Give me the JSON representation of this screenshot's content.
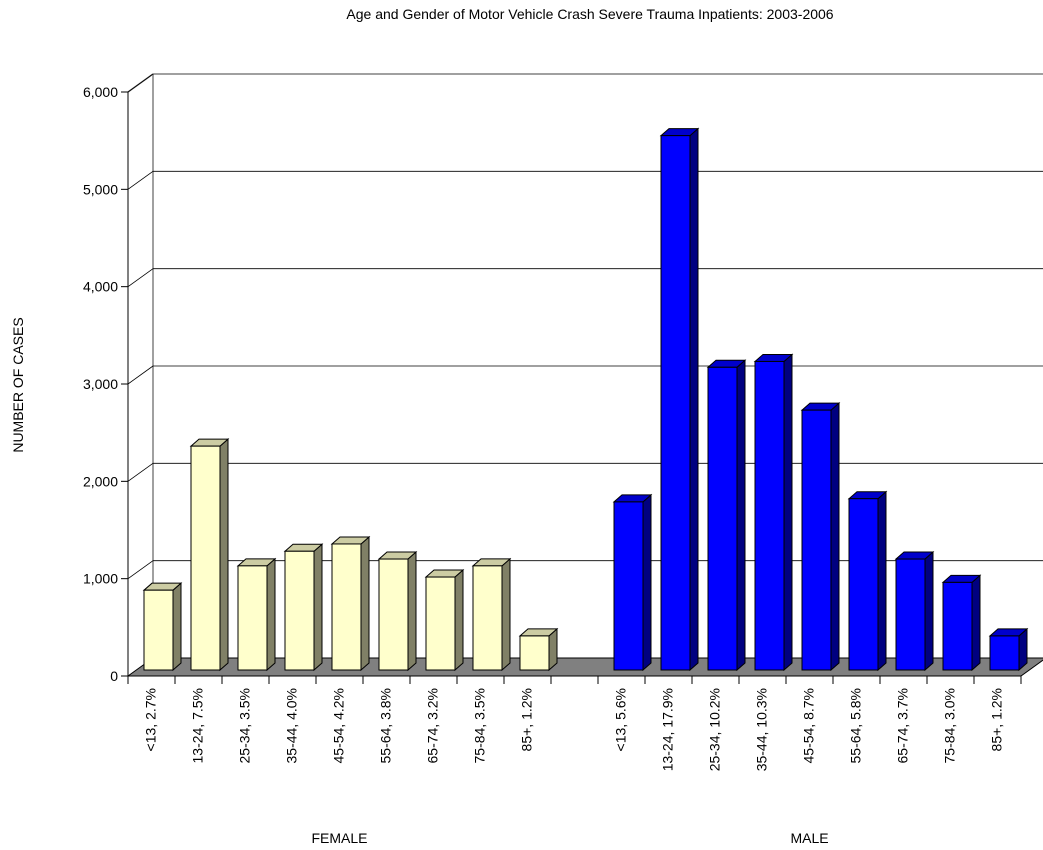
{
  "chart_data": {
    "type": "bar3d",
    "title": "Age and Gender of Motor Vehicle Crash Severe Trauma Inpatients: 2003-2006",
    "y_label": "NUMBER OF CASES",
    "groups": [
      {
        "name": "FEMALE",
        "color": "#ffffcc",
        "categories": [
          "<13, 2.7%",
          "13-24, 7.5%",
          "25-34, 3.5%",
          "35-44, 4.0%",
          "45-54, 4.2%",
          "55-64, 3.8%",
          "65-74, 3.2%",
          "75-84, 3.5%",
          "85+, 1.2%"
        ],
        "values": [
          820,
          2300,
          1070,
          1220,
          1295,
          1140,
          955,
          1070,
          350
        ]
      },
      {
        "name": "MALE",
        "color": "#0000ff",
        "categories": [
          "<13, 5.6%",
          "13-24, 17.9%",
          "25-34, 10.2%",
          "35-44, 10.3%",
          "45-54, 8.7%",
          "55-64, 5.8%",
          "65-74, 3.7%",
          "75-84, 3.0%",
          "85+, 1.2%"
        ],
        "values": [
          1727,
          5490,
          3110,
          3170,
          2670,
          1760,
          1140,
          900,
          350
        ]
      }
    ],
    "ylim": [
      0,
      6000
    ],
    "yticks": [
      0,
      {
        "value": 1000,
        "label": "1,000"
      },
      {
        "value": 2000,
        "label": "2,000"
      },
      {
        "value": 3000,
        "label": "3,000"
      },
      {
        "value": 4000,
        "label": "4,000"
      },
      {
        "value": 5000,
        "label": "5,000"
      },
      {
        "value": 6000,
        "label": "6,000"
      }
    ],
    "grid": true
  }
}
